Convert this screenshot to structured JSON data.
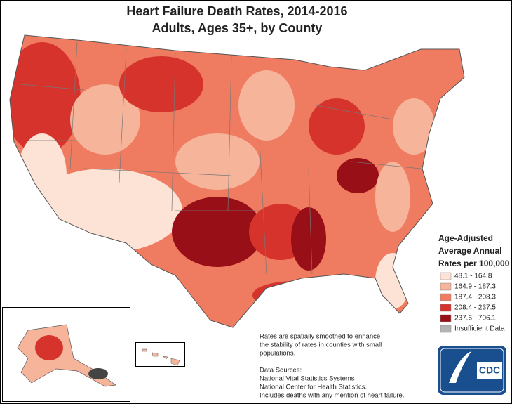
{
  "title": {
    "line1": "Heart Failure Death Rates, 2014-2016",
    "line2": "Adults, Ages 35+, by County"
  },
  "legend": {
    "title": [
      "Age-Adjusted",
      "Average Annual",
      "Rates per 100,000"
    ],
    "items": [
      {
        "label": "48.1 - 164.8",
        "color": "#fde3d6"
      },
      {
        "label": "164.9 - 187.3",
        "color": "#f6b49b"
      },
      {
        "label": "187.4 - 208.3",
        "color": "#ef7b60"
      },
      {
        "label": "208.4 - 237.5",
        "color": "#d6332c"
      },
      {
        "label": "237.6 - 706.1",
        "color": "#980f18"
      },
      {
        "label": "Insufficient Data",
        "color": "#b3b3b3"
      }
    ]
  },
  "notes": [
    "Rates are spatially smoothed to enhance",
    "the stability of rates in counties with small",
    "populations."
  ],
  "sources": [
    "Data Sources:",
    "National Vital Statistics Systems",
    "National Center for Health Statistics.",
    "Includes deaths with any mention of heart failure."
  ],
  "logo": "CDC"
}
